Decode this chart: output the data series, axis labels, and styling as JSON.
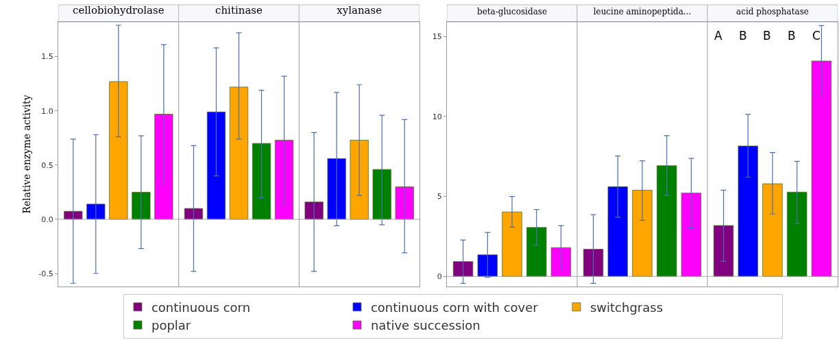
{
  "chart_data": [
    {
      "type": "bar",
      "categories": [
        "cellobiohydrolase",
        "chitinase",
        "xylanase"
      ],
      "ylabel": "Relative enzyme activity",
      "ylim": [
        -0.62,
        1.82
      ],
      "yticks": [
        -0.5,
        {
          "value": 0,
          "label": "0.0"
        },
        0.5,
        {
          "value": 1,
          "label": "1.0"
        },
        1.5
      ],
      "legend": "bottom",
      "ref_lines": [
        {
          "axis": "y",
          "value": 0,
          "color": "#aaaaaa"
        }
      ],
      "series": [
        {
          "name": "continuous corn",
          "color": "#800080",
          "values": [
            0.074,
            0.1,
            0.16
          ],
          "errors": [
            [
              -0.59,
              0.74
            ],
            [
              -0.48,
              0.68
            ],
            [
              -0.48,
              0.8
            ]
          ]
        },
        {
          "name": "continuous corn with cover",
          "color": "#0000ff",
          "values": [
            0.14,
            0.99,
            0.56
          ],
          "errors": [
            [
              -0.5,
              0.78
            ],
            [
              0.4,
              1.58
            ],
            [
              -0.06,
              1.17
            ]
          ]
        },
        {
          "name": "switchgrass",
          "color": "#ffa500",
          "values": [
            1.27,
            1.22,
            0.73
          ],
          "errors": [
            [
              0.76,
              1.79
            ],
            [
              0.74,
              1.72
            ],
            [
              0.22,
              1.24
            ]
          ]
        },
        {
          "name": "poplar",
          "color": "#008000",
          "values": [
            0.25,
            0.7,
            0.46
          ],
          "errors": [
            [
              -0.27,
              0.77
            ],
            [
              0.2,
              1.19
            ],
            [
              -0.05,
              0.96
            ]
          ]
        },
        {
          "name": "native succession",
          "color": "#ff00ff",
          "values": [
            0.97,
            0.73,
            0.3
          ],
          "errors": [
            [
              0.33,
              1.61
            ],
            [
              0.14,
              1.32
            ],
            [
              -0.31,
              0.92
            ]
          ]
        }
      ]
    },
    {
      "type": "bar",
      "categories": [
        "beta-glucosidase",
        "leucine aminopeptida...",
        "acid phosphatase"
      ],
      "ylim": [
        -0.63,
        15.9
      ],
      "yticks": [
        0,
        5,
        10,
        15
      ],
      "ref_lines": [
        {
          "axis": "y",
          "value": 0,
          "color": "#aaaaaa"
        }
      ],
      "annotations": [
        "A",
        "B",
        "B",
        "B",
        "C"
      ],
      "series": [
        {
          "color": "#800080",
          "values": [
            0.93,
            1.7,
            3.18
          ],
          "errors": [
            [
              -0.43,
              2.28
            ],
            [
              -0.43,
              3.86
            ],
            [
              0.95,
              5.39
            ]
          ]
        },
        {
          "color": "#0000ff",
          "values": [
            1.35,
            5.61,
            8.15
          ],
          "errors": [
            [
              -0.05,
              2.75
            ],
            [
              3.7,
              7.52
            ],
            [
              6.2,
              10.12
            ]
          ]
        },
        {
          "color": "#ffa500",
          "values": [
            4.03,
            5.39,
            5.79
          ],
          "errors": [
            [
              3.08,
              5.0
            ],
            [
              3.51,
              7.22
            ],
            [
              3.91,
              7.74
            ]
          ]
        },
        {
          "color": "#008000",
          "values": [
            3.06,
            6.92,
            5.27
          ],
          "errors": [
            [
              1.95,
              4.18
            ],
            [
              5.06,
              8.8
            ],
            [
              3.33,
              7.19
            ]
          ]
        },
        {
          "color": "#ff00ff",
          "values": [
            1.8,
            5.21,
            13.46
          ],
          "errors": [
            [
              0.42,
              3.18
            ],
            [
              3.04,
              7.37
            ],
            [
              11.21,
              15.67
            ]
          ]
        }
      ]
    }
  ]
}
